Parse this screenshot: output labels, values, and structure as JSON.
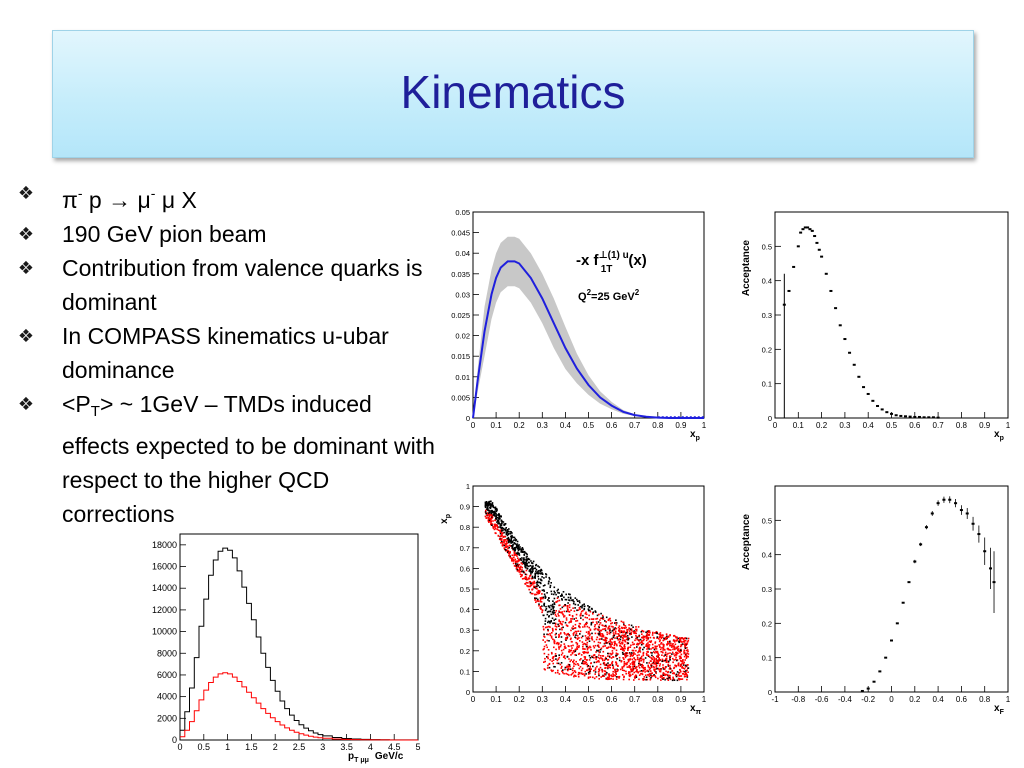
{
  "slide": {
    "title": "Kinematics"
  },
  "bullets": {
    "b1": {
      "pi": "π",
      "pi_sup": "-",
      "mid": " p ",
      "arrow": "→",
      "mu": " μ",
      "mu_sup": "-",
      "end": " μ X"
    },
    "b2": "190 GeV pion beam",
    "b3": "Contribution from valence quarks is dominant",
    "b4": "In COMPASS kinematics u-ubar dominance",
    "b5": {
      "pre": "<P",
      "sub": "T",
      "post": "> ~ 1GeV – TMDs induced effects expected to be dominant with respect to the higher QCD corrections"
    }
  },
  "chart_data": [
    {
      "id": "boer-mulders",
      "type": "line",
      "x": [
        0.0,
        0.02,
        0.05,
        0.08,
        0.1,
        0.12,
        0.15,
        0.18,
        0.2,
        0.25,
        0.3,
        0.35,
        0.4,
        0.45,
        0.5,
        0.55,
        0.6,
        0.65,
        0.7,
        0.75,
        0.8,
        0.85,
        0.9,
        0.95,
        1.0
      ],
      "series": [
        {
          "values": [
            0,
            0.009,
            0.021,
            0.03,
            0.034,
            0.0365,
            0.038,
            0.038,
            0.0375,
            0.034,
            0.029,
            0.023,
            0.017,
            0.012,
            0.008,
            0.005,
            0.003,
            0.0015,
            0.0007,
            0.0003,
            0.0001,
            0,
            0,
            0,
            0
          ],
          "band": 0.006,
          "color": "#1f1fdd",
          "band_color": "#c8c8c8"
        }
      ],
      "xlim": [
        0,
        1
      ],
      "ylim": [
        0,
        0.05
      ],
      "xticks": [
        "0",
        "0.1",
        "0.2",
        "0.3",
        "0.4",
        "0.5",
        "0.6",
        "0.7",
        "0.8",
        "0.9",
        "1"
      ],
      "yticks": [
        "0",
        "0.005",
        "0.01",
        "0.015",
        "0.02",
        "0.025",
        "0.03",
        "0.035",
        "0.04",
        "0.045",
        "0.05"
      ],
      "ytick_values": [
        0,
        0.005,
        0.01,
        0.015,
        0.02,
        0.025,
        0.03,
        0.035,
        0.04,
        0.045,
        0.05
      ],
      "xlabel": "x",
      "xlabel_sub": "p",
      "annotation": {
        "main": "-x f",
        "sup": "⊥(1) u",
        "sub": "1T",
        "tail": "(x)",
        "q2": "Q",
        "q2_sup": "2",
        "q2_tail": "=25 GeV",
        "q2_tail_sup": "2"
      }
    },
    {
      "id": "acceptance-xp",
      "type": "scatter",
      "x": [
        0.04,
        0.06,
        0.08,
        0.1,
        0.11,
        0.12,
        0.13,
        0.14,
        0.15,
        0.16,
        0.17,
        0.18,
        0.19,
        0.2,
        0.22,
        0.24,
        0.26,
        0.28,
        0.3,
        0.32,
        0.34,
        0.36,
        0.38,
        0.4,
        0.42,
        0.44,
        0.46,
        0.48,
        0.5,
        0.52,
        0.54,
        0.56,
        0.58,
        0.6,
        0.62,
        0.64,
        0.66,
        0.68,
        0.7
      ],
      "series": [
        {
          "values": [
            0.33,
            0.37,
            0.44,
            0.5,
            0.54,
            0.55,
            0.555,
            0.555,
            0.55,
            0.545,
            0.53,
            0.51,
            0.49,
            0.47,
            0.42,
            0.37,
            0.32,
            0.27,
            0.23,
            0.19,
            0.155,
            0.12,
            0.09,
            0.07,
            0.05,
            0.035,
            0.025,
            0.017,
            0.012,
            0.008,
            0.006,
            0.005,
            0.004,
            0.003,
            0.003,
            0.002,
            0.002,
            0.002,
            0.001
          ]
        }
      ],
      "xlim": [
        0,
        1
      ],
      "ylim": [
        0,
        0.6
      ],
      "xticks": [
        "0",
        "0.1",
        "0.2",
        "0.3",
        "0.4",
        "0.5",
        "0.6",
        "0.7",
        "0.8",
        "0.9",
        "1"
      ],
      "yticks": [
        "0",
        "0.1",
        "0.2",
        "0.3",
        "0.4",
        "0.5"
      ],
      "ytick_values": [
        0,
        0.1,
        0.2,
        0.3,
        0.4,
        0.5
      ],
      "xlabel": "x",
      "xlabel_sub": "p",
      "ylabel": "Acceptance"
    },
    {
      "id": "xp-vs-xpi",
      "type": "scatter",
      "xlim": [
        0,
        1
      ],
      "ylim": [
        0,
        1
      ],
      "xticks": [
        "0",
        "0.1",
        "0.2",
        "0.3",
        "0.4",
        "0.5",
        "0.6",
        "0.7",
        "0.8",
        "0.9",
        "1"
      ],
      "yticks": [
        "0",
        "0.1",
        "0.2",
        "0.3",
        "0.4",
        "0.5",
        "0.6",
        "0.7",
        "0.8",
        "0.9",
        "1"
      ],
      "ytick_values": [
        0,
        0.1,
        0.2,
        0.3,
        0.4,
        0.5,
        0.6,
        0.7,
        0.8,
        0.9,
        1
      ],
      "xlabel": "x",
      "xlabel_sub": "π",
      "ylabel": "x",
      "ylabel_sub": "p",
      "series": [
        {
          "name": "",
          "color": "#000000"
        },
        {
          "name": "",
          "color": "#ff0000"
        }
      ]
    },
    {
      "id": "acceptance-xf",
      "type": "scatter",
      "x": [
        -0.25,
        -0.2,
        -0.15,
        -0.1,
        -0.05,
        0,
        0.05,
        0.1,
        0.15,
        0.2,
        0.25,
        0.3,
        0.35,
        0.4,
        0.45,
        0.5,
        0.55,
        0.6,
        0.65,
        0.7,
        0.75,
        0.8,
        0.85,
        0.88
      ],
      "series": [
        {
          "values": [
            0.003,
            0.01,
            0.03,
            0.06,
            0.1,
            0.15,
            0.2,
            0.26,
            0.32,
            0.38,
            0.43,
            0.48,
            0.52,
            0.55,
            0.56,
            0.56,
            0.55,
            0.53,
            0.52,
            0.49,
            0.46,
            0.41,
            0.36,
            0.32
          ],
          "errors": [
            0,
            0,
            0,
            0,
            0,
            0,
            0,
            0,
            0,
            0.005,
            0.005,
            0.006,
            0.007,
            0.008,
            0.009,
            0.01,
            0.012,
            0.014,
            0.016,
            0.02,
            0.025,
            0.04,
            0.06,
            0.09
          ]
        }
      ],
      "xlim": [
        -1,
        1
      ],
      "ylim": [
        0,
        0.6
      ],
      "xticks": [
        "-1",
        "-0.8",
        "-0.6",
        "-0.4",
        "-0.2",
        "0",
        "0.2",
        "0.4",
        "0.6",
        "0.8",
        "1"
      ],
      "yticks": [
        "0",
        "0.1",
        "0.2",
        "0.3",
        "0.4",
        "0.5"
      ],
      "ytick_values": [
        0,
        0.1,
        0.2,
        0.3,
        0.4,
        0.5
      ],
      "xlabel": "x",
      "xlabel_sub": "F",
      "ylabel": "Acceptance"
    },
    {
      "id": "pt-distribution",
      "type": "line",
      "x": [
        0,
        0.1,
        0.2,
        0.3,
        0.4,
        0.5,
        0.6,
        0.7,
        0.8,
        0.9,
        1.0,
        1.1,
        1.2,
        1.3,
        1.4,
        1.5,
        1.6,
        1.7,
        1.8,
        1.9,
        2.0,
        2.1,
        2.2,
        2.3,
        2.4,
        2.5,
        2.6,
        2.7,
        2.8,
        2.9,
        3.0,
        3.2,
        3.4,
        3.6,
        3.8,
        4.0,
        4.2,
        4.4,
        4.6,
        4.8
      ],
      "series": [
        {
          "color": "#000000",
          "values": [
            900,
            2600,
            4800,
            7600,
            10500,
            13000,
            15200,
            16600,
            17400,
            17700,
            17500,
            16800,
            15600,
            14100,
            12600,
            11100,
            9500,
            8000,
            6700,
            5500,
            4500,
            3600,
            2900,
            2300,
            1800,
            1400,
            1100,
            850,
            650,
            500,
            380,
            230,
            140,
            90,
            55,
            35,
            20,
            12,
            8,
            5
          ]
        },
        {
          "color": "#ff0000",
          "values": [
            300,
            900,
            1700,
            2700,
            3700,
            4600,
            5300,
            5800,
            6100,
            6200,
            6100,
            5800,
            5400,
            4900,
            4400,
            3900,
            3400,
            2900,
            2450,
            2050,
            1700,
            1380,
            1120,
            900,
            720,
            570,
            450,
            350,
            270,
            210,
            160,
            95,
            55,
            35,
            20,
            12,
            7,
            4,
            2,
            1
          ]
        }
      ],
      "xlim": [
        0,
        5
      ],
      "ylim": [
        0,
        19000
      ],
      "xticks": [
        "0",
        "0.5",
        "1",
        "1.5",
        "2",
        "2.5",
        "3",
        "3.5",
        "4",
        "4.5",
        "5"
      ],
      "yticks": [
        "0",
        "2000",
        "4000",
        "6000",
        "8000",
        "10000",
        "12000",
        "14000",
        "16000",
        "18000"
      ],
      "ytick_values": [
        0,
        2000,
        4000,
        6000,
        8000,
        10000,
        12000,
        14000,
        16000,
        18000
      ],
      "xlabel": "p",
      "xlabel_sub": "T μμ",
      "xunit": "GeV/c"
    }
  ]
}
